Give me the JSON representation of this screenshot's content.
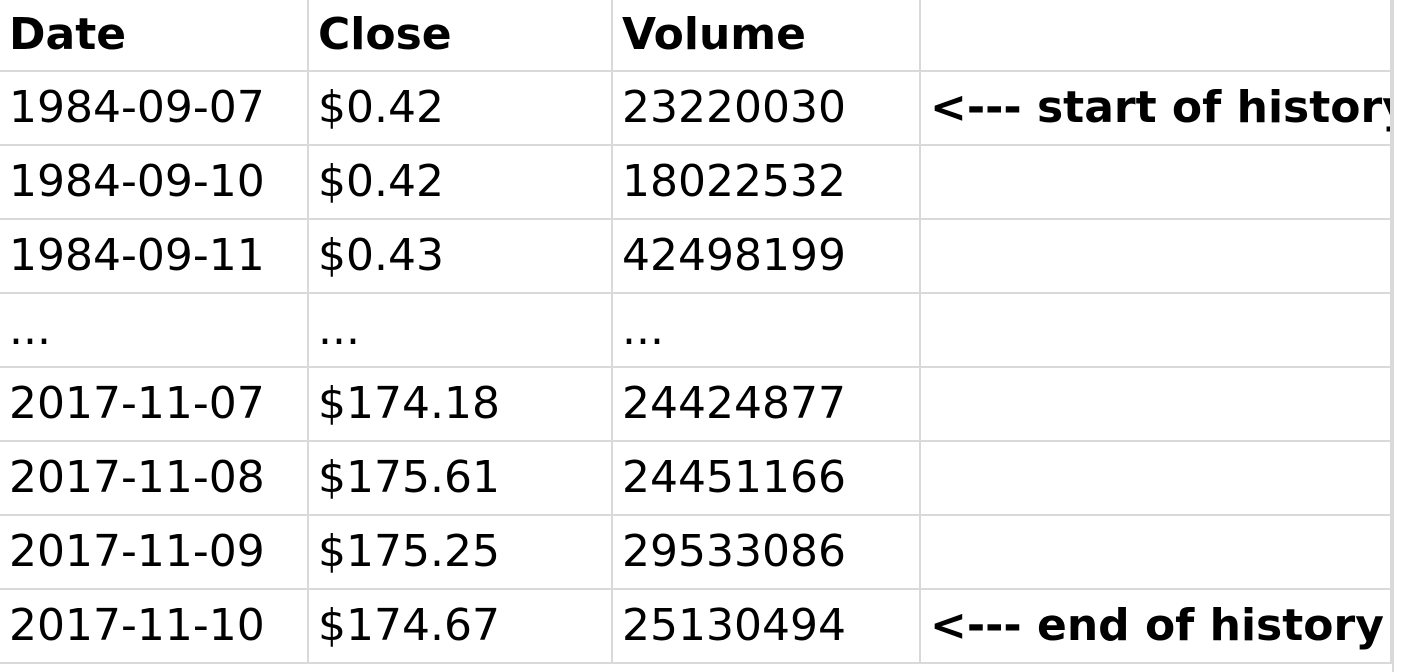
{
  "sheet": {
    "headers": [
      "Date",
      "Close",
      "Volume",
      ""
    ],
    "rows": [
      [
        "1984-09-07",
        "$0.42",
        "23220030",
        "<--- start of history"
      ],
      [
        "1984-09-10",
        "$0.42",
        "18022532",
        ""
      ],
      [
        "1984-09-11",
        "$0.43",
        "42498199",
        ""
      ],
      [
        "...",
        "...",
        "...",
        ""
      ],
      [
        "2017-11-07",
        "$174.18",
        "24424877",
        ""
      ],
      [
        "2017-11-08",
        "$175.61",
        "24451166",
        ""
      ],
      [
        "2017-11-09",
        "$175.25",
        "29533086",
        ""
      ],
      [
        "2017-11-10",
        "$174.67",
        "25130494",
        "<--- end of history"
      ]
    ]
  }
}
